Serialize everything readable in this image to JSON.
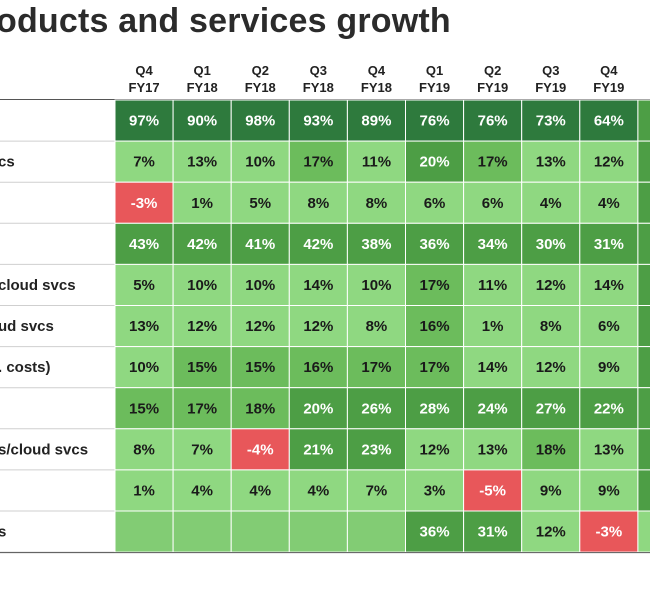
{
  "chart_data": {
    "type": "heatmap",
    "title": "oducts and services growth",
    "columns": [
      {
        "quarter": "Q4",
        "year": "FY17"
      },
      {
        "quarter": "Q1",
        "year": "FY18"
      },
      {
        "quarter": "Q2",
        "year": "FY18"
      },
      {
        "quarter": "Q3",
        "year": "FY18"
      },
      {
        "quarter": "Q4",
        "year": "FY18"
      },
      {
        "quarter": "Q1",
        "year": "FY19"
      },
      {
        "quarter": "Q2",
        "year": "FY19"
      },
      {
        "quarter": "Q3",
        "year": "FY19"
      },
      {
        "quarter": "Q4",
        "year": "FY19"
      }
    ],
    "rows": [
      {
        "label": "",
        "values": [
          97,
          90,
          98,
          93,
          89,
          76,
          76,
          73,
          64
        ]
      },
      {
        "label": "cs",
        "values": [
          7,
          13,
          10,
          17,
          11,
          20,
          17,
          13,
          12
        ]
      },
      {
        "label": "",
        "values": [
          -3,
          1,
          5,
          8,
          8,
          6,
          6,
          4,
          4
        ]
      },
      {
        "label": "",
        "values": [
          43,
          42,
          41,
          42,
          38,
          36,
          34,
          30,
          31
        ]
      },
      {
        "label": "cloud svcs",
        "values": [
          5,
          10,
          10,
          14,
          10,
          17,
          11,
          12,
          14
        ]
      },
      {
        "label": "ud svcs",
        "values": [
          13,
          12,
          12,
          12,
          8,
          16,
          1,
          8,
          6
        ]
      },
      {
        "label": ". costs)",
        "values": [
          10,
          15,
          15,
          16,
          17,
          17,
          14,
          12,
          9
        ]
      },
      {
        "label": "",
        "values": [
          15,
          17,
          18,
          20,
          26,
          28,
          24,
          27,
          22
        ]
      },
      {
        "label": "s/cloud svcs",
        "values": [
          8,
          7,
          -4,
          21,
          23,
          12,
          13,
          18,
          13
        ]
      },
      {
        "label": "",
        "values": [
          1,
          4,
          4,
          4,
          7,
          3,
          -5,
          9,
          9
        ]
      },
      {
        "label": "s",
        "values": [
          null,
          null,
          null,
          null,
          null,
          36,
          31,
          12,
          -3
        ]
      }
    ],
    "value_suffix": "%",
    "colors": {
      "negative": "#e8575a",
      "empty": "#82cc74",
      "light": "#8fd881",
      "mid": "#6cbc5c",
      "dark": "#4d9e45",
      "darkest": "#2e7a3d",
      "text_dark": "#1a1a1a",
      "text_light": "#ffffff",
      "grid": "#ffffff"
    }
  }
}
